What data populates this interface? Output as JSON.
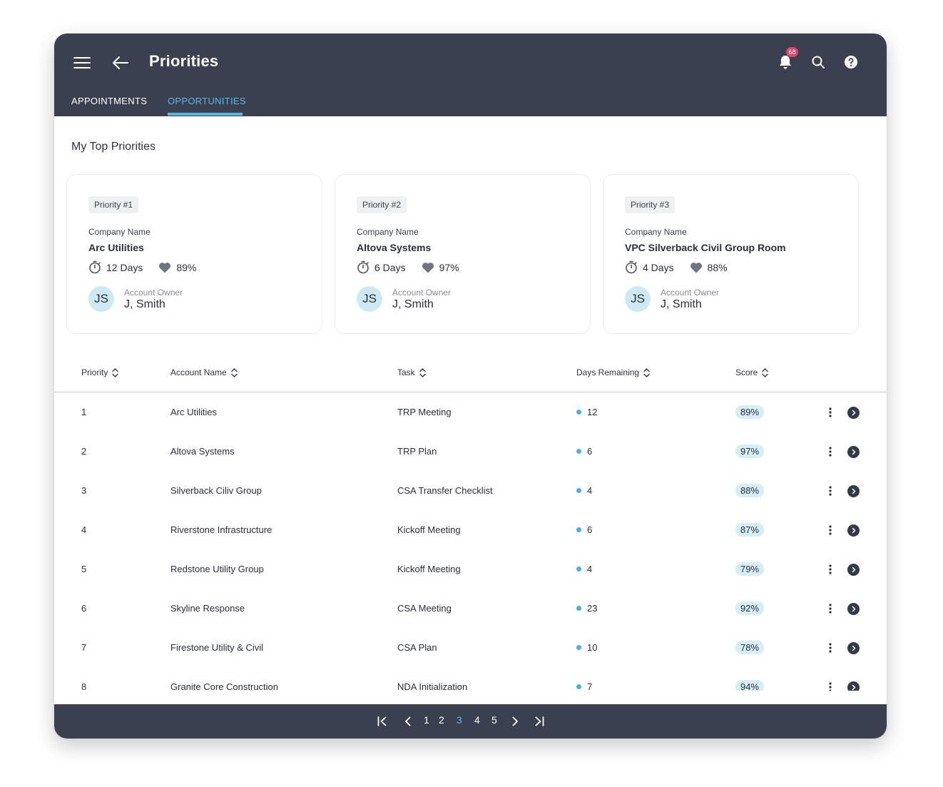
{
  "header": {
    "title": "Priorities",
    "notification_count": "68",
    "menu_icon": "hamburger-icon",
    "back_icon": "arrow-left-icon",
    "bell_icon": "bell-icon",
    "search_icon": "search-icon",
    "help_icon": "help-circle-icon"
  },
  "tabs": [
    {
      "label": "APPOINTMENTS",
      "active": false
    },
    {
      "label": "OPPORTUNITIES",
      "active": true
    }
  ],
  "section_title": "My Top Priorities",
  "cards": [
    {
      "priority": "Priority #1",
      "company_label": "Company Name",
      "company": "Arc Utilities",
      "days": "12 Days",
      "score": "89%",
      "initials": "JS",
      "owner_label": "Account Owner",
      "owner": "J, Smith"
    },
    {
      "priority": "Priority #2",
      "company_label": "Company Name",
      "company": "Altova Systems",
      "days": "6 Days",
      "score": "97%",
      "initials": "JS",
      "owner_label": "Account Owner",
      "owner": "J, Smith"
    },
    {
      "priority": "Priority #3",
      "company_label": "Company Name",
      "company": "VPC Silverback Civil Group Room",
      "days": "4 Days",
      "score": "88%",
      "initials": "JS",
      "owner_label": "Account Owner",
      "owner": "J, Smith"
    }
  ],
  "table": {
    "columns": [
      "Priority",
      "Account Name",
      "Task",
      "Days Remaining",
      "Score"
    ],
    "rows": [
      {
        "priority": "1",
        "account": "Arc Utilities",
        "task": "TRP Meeting",
        "days": "12",
        "score": "89%"
      },
      {
        "priority": "2",
        "account": "Altova Systems",
        "task": "TRP Plan",
        "days": "6",
        "score": "97%"
      },
      {
        "priority": "3",
        "account": "Silverback Ciliv Group",
        "task": "CSA Transfer Checklist",
        "days": "4",
        "score": "88%"
      },
      {
        "priority": "4",
        "account": "Riverstone Infrastructure",
        "task": "Kickoff Meeting",
        "days": "6",
        "score": "87%"
      },
      {
        "priority": "5",
        "account": "Redstone Utility Group",
        "task": "Kickoff Meeting",
        "days": "4",
        "score": "79%"
      },
      {
        "priority": "6",
        "account": "Skyline Response",
        "task": "CSA Meeting",
        "days": "23",
        "score": "92%"
      },
      {
        "priority": "7",
        "account": "Firestone Utility & Civil",
        "task": "CSA Plan",
        "days": "10",
        "score": "78%"
      },
      {
        "priority": "8",
        "account": "Granite Core Construction",
        "task": "NDA Initialization",
        "days": "7",
        "score": "94%"
      }
    ]
  },
  "pagination": {
    "pages": [
      "1",
      "2",
      "3",
      "4",
      "5"
    ],
    "current": "3"
  },
  "colors": {
    "header_bg": "#3a404f",
    "accent": "#57b8e6",
    "badge": "#d9486a",
    "score_pill": "#d6eef5",
    "avatar": "#cde9f2"
  }
}
